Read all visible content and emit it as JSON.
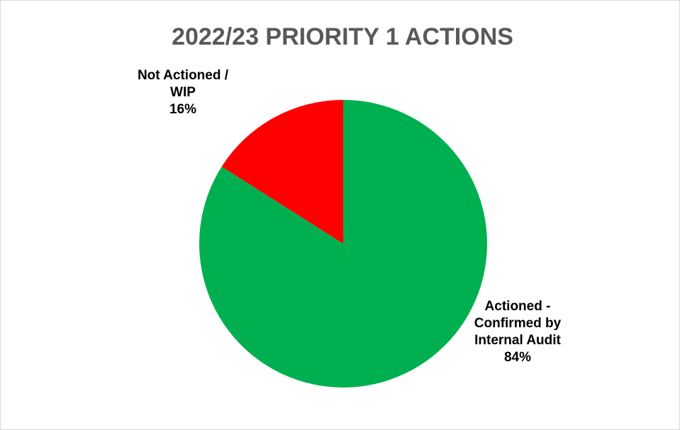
{
  "chart_data": {
    "type": "pie",
    "title": "2022/23 PRIORITY 1 ACTIONS",
    "start_angle_deg": 0,
    "direction": "clockwise",
    "legend": "none",
    "slices": [
      {
        "name": "Actioned - Confirmed by Internal Audit",
        "value": 84,
        "percent_label": "84%",
        "color": "#00b050",
        "label_lines": [
          "Actioned -",
          "Confirmed by",
          "Internal Audit",
          "84%"
        ]
      },
      {
        "name": "Not Actioned / WIP",
        "value": 16,
        "percent_label": "16%",
        "color": "#ff0000",
        "label_lines": [
          "Not Actioned /",
          "WIP",
          "16%"
        ]
      }
    ]
  }
}
